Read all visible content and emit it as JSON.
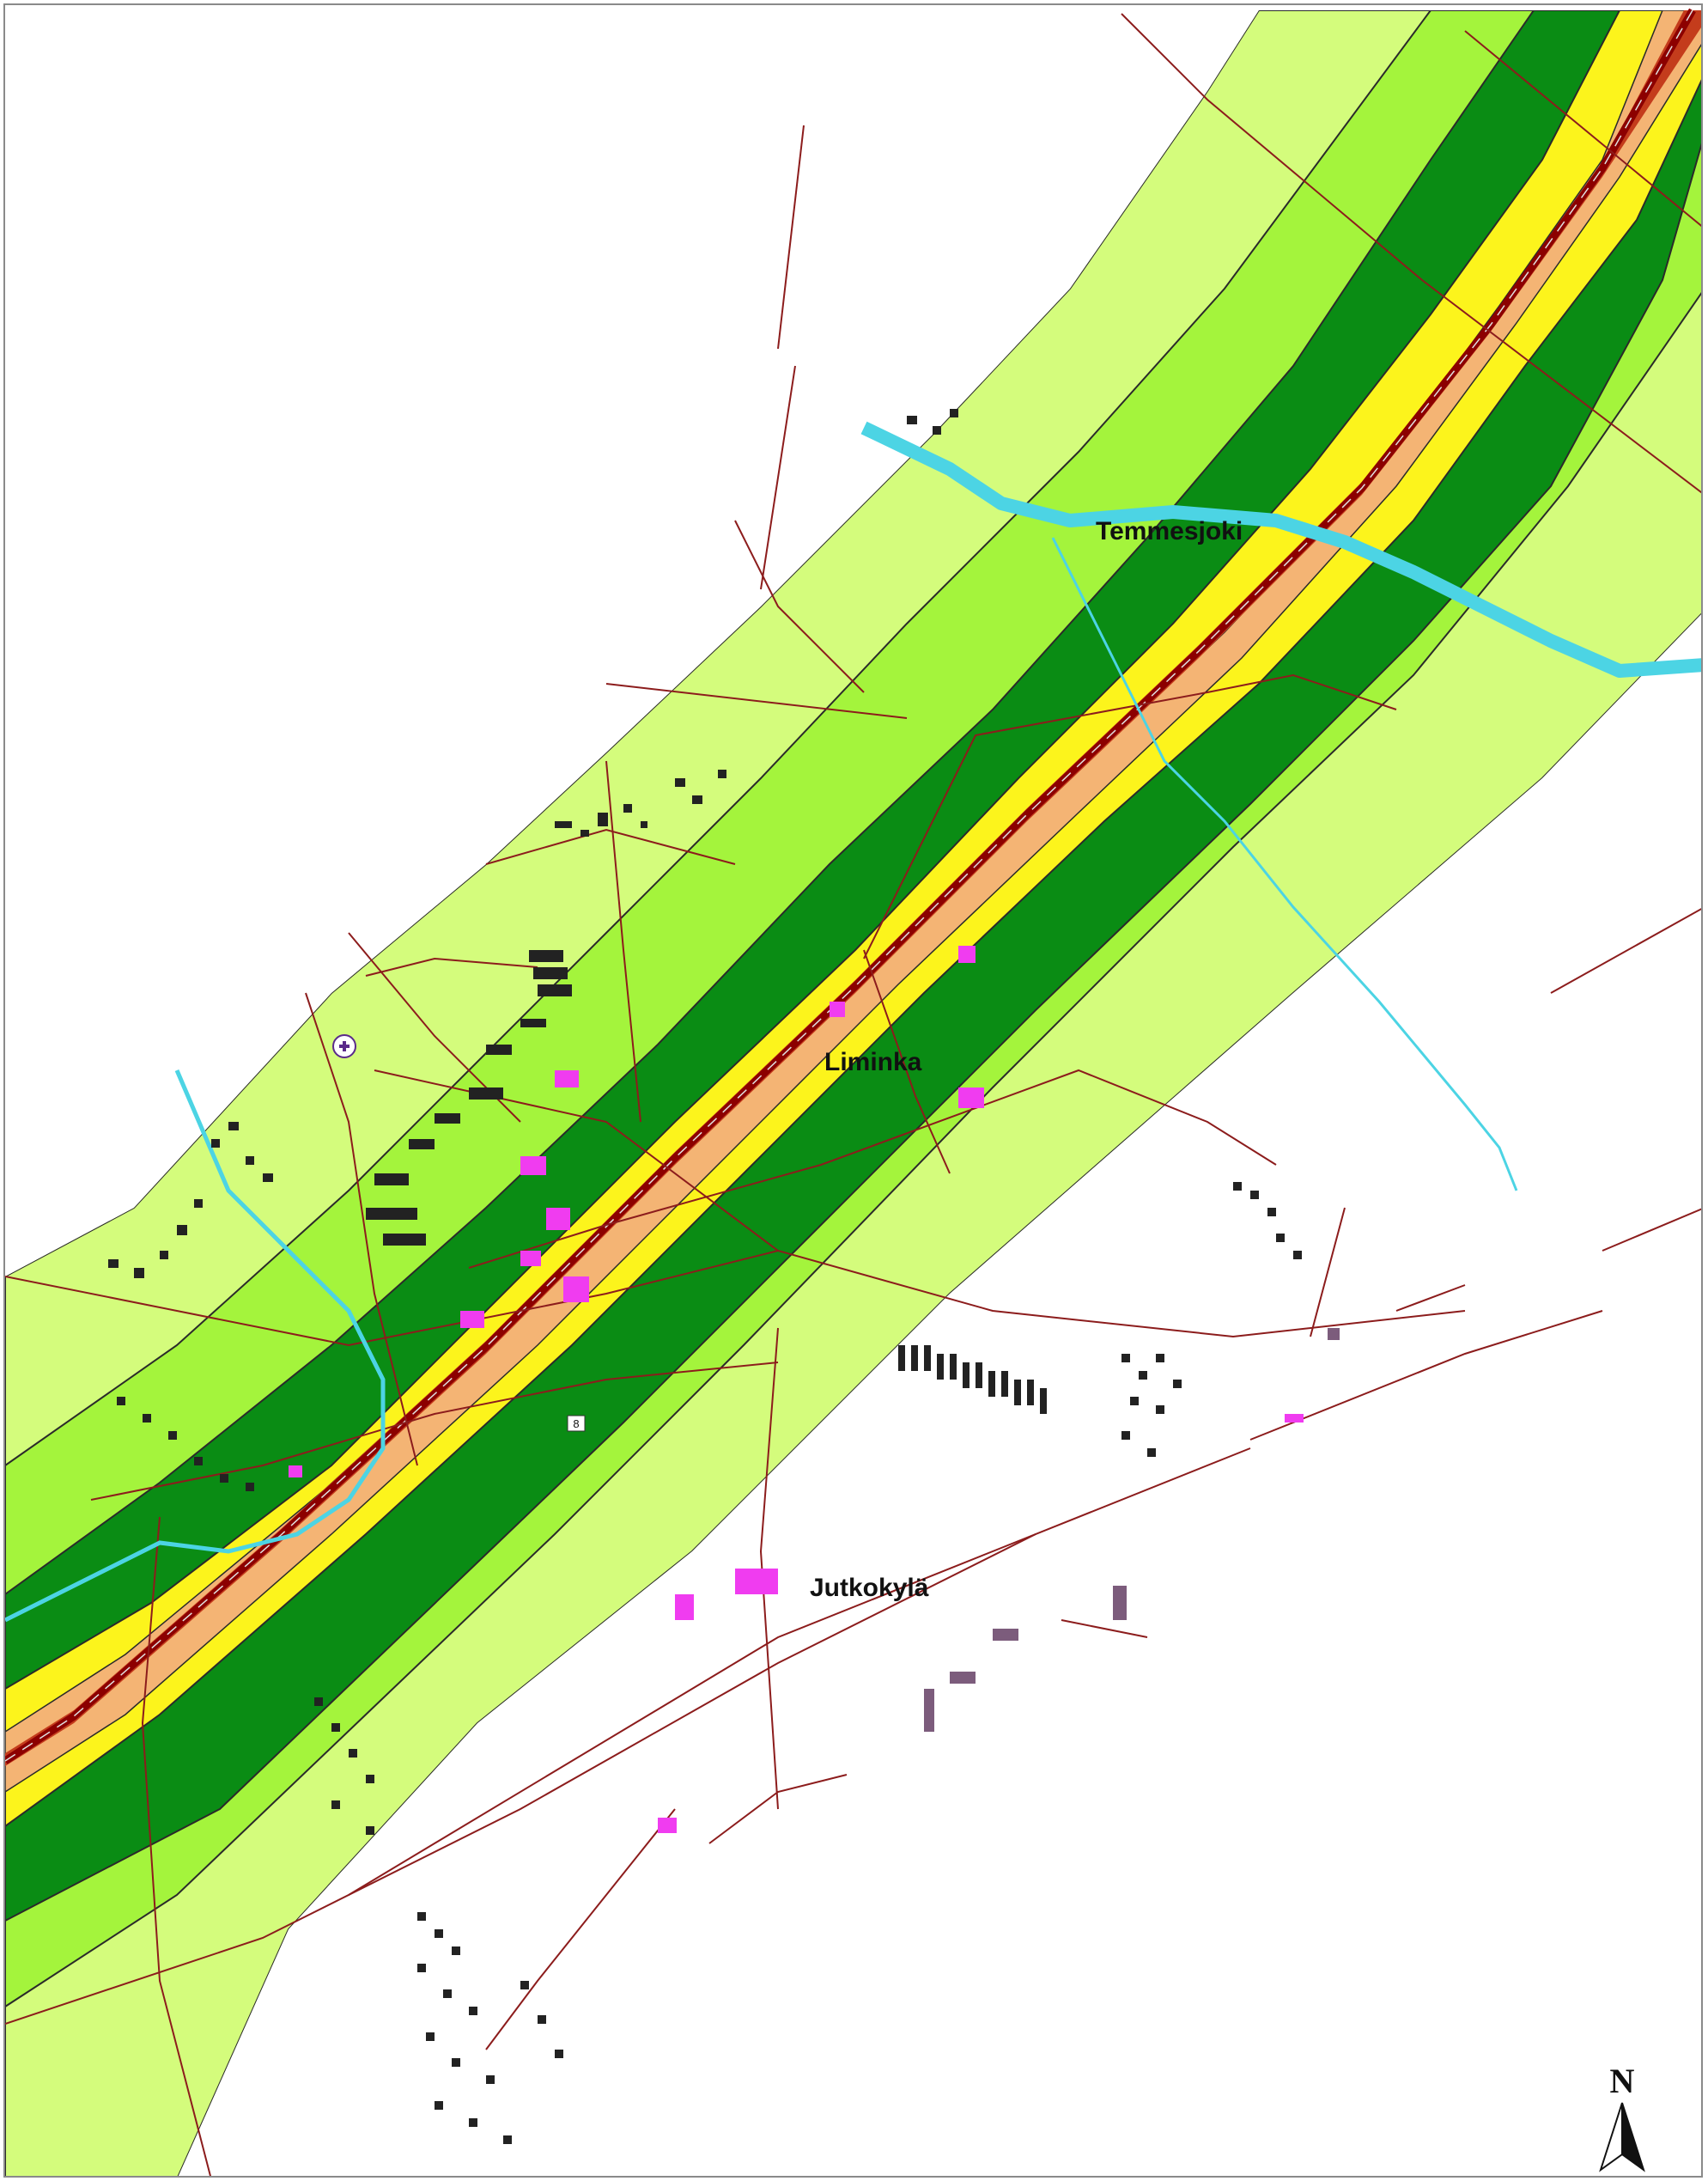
{
  "map": {
    "labels": {
      "temmesjoki": "Temmesjoki",
      "liminka": "Liminka",
      "jutkokyla": "Jutkokylä"
    },
    "road_number": "8",
    "north_arrow": "N"
  },
  "colors": {
    "zone_outer": "#d4fc7c",
    "zone_middle": "#a4f43c",
    "zone_inner_dark": "#0a8c14",
    "zone_yellow": "#fcf41c",
    "zone_orange": "#f4b474",
    "zone_red": "#c43c1c",
    "highway_core": "#8c0000",
    "road_lines": "#8c1c1c",
    "river": "#4cd4e4",
    "buildings": "#222222",
    "public_buildings": "#f03cf0",
    "industrial_buildings": "#7c5c7c",
    "frame": "#8a8a8a"
  }
}
